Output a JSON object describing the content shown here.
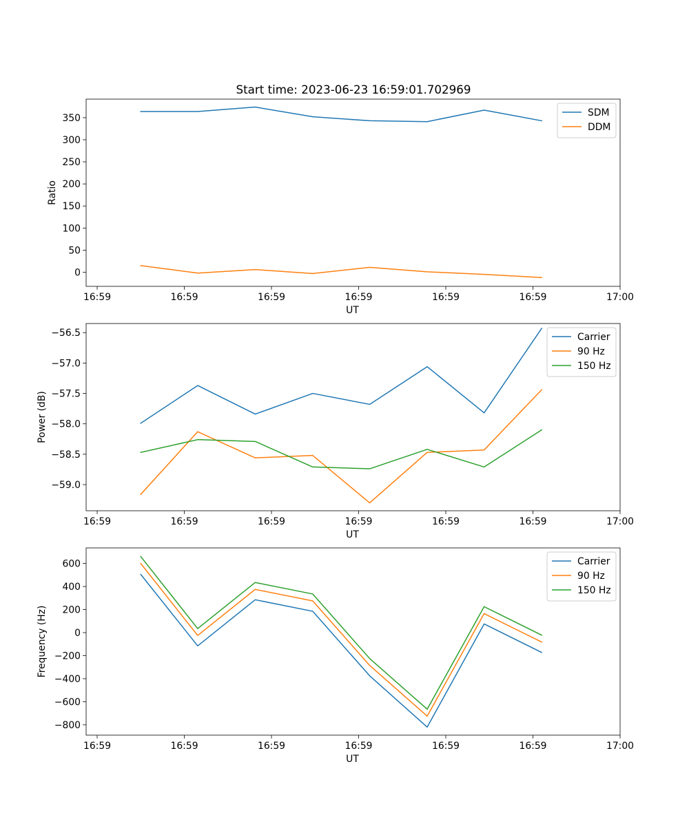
{
  "title": "Start time: 2023-06-23 16:59:01.702969",
  "colors": {
    "series1": "#1f77b4",
    "series2": "#ff7f0e",
    "series3": "#2ca02c",
    "axis": "#000000",
    "legend_border": "#cccccc"
  },
  "chart_data": [
    {
      "type": "line",
      "title": "Start time: 2023-06-23 16:59:01.702969",
      "xlabel": "UT",
      "ylabel": "Ratio",
      "x_tick_labels": [
        "16:59",
        "16:59",
        "16:59",
        "16:59",
        "16:59",
        "16:59",
        "17:00"
      ],
      "x_range_index": [
        -0.19,
        9.0
      ],
      "x_ticks_index": [
        0,
        1.5,
        3,
        4.5,
        6,
        7.5,
        9
      ],
      "ylim": [
        -32,
        392
      ],
      "y_ticks": [
        0,
        50,
        100,
        150,
        200,
        250,
        300,
        350
      ],
      "y_tick_labels": [
        "0",
        "50",
        "100",
        "150",
        "200",
        "250",
        "300",
        "350"
      ],
      "legend_position": "upper right",
      "grid": false,
      "x": [
        0.75,
        1.73,
        2.72,
        3.71,
        4.69,
        5.68,
        6.66,
        7.65
      ],
      "series": [
        {
          "name": "SDM",
          "color": "#1f77b4",
          "values": [
            364,
            364,
            374,
            352,
            343,
            341,
            367,
            343
          ]
        },
        {
          "name": "DDM",
          "color": "#ff7f0e",
          "values": [
            15,
            -2,
            6,
            -3,
            11,
            1,
            -5,
            -12
          ]
        }
      ]
    },
    {
      "type": "line",
      "xlabel": "UT",
      "ylabel": "Power (dB)",
      "x_tick_labels": [
        "16:59",
        "16:59",
        "16:59",
        "16:59",
        "16:59",
        "16:59",
        "17:00"
      ],
      "x_range_index": [
        -0.19,
        9.0
      ],
      "x_ticks_index": [
        0,
        1.5,
        3,
        4.5,
        6,
        7.5,
        9
      ],
      "ylim": [
        -59.43,
        -56.35
      ],
      "y_ticks": [
        -59.0,
        -58.5,
        -58.0,
        -57.5,
        -57.0,
        -56.5
      ],
      "y_tick_labels": [
        "−59.0",
        "−58.5",
        "−58.0",
        "−57.5",
        "−57.0",
        "−56.5"
      ],
      "legend_position": "upper right",
      "grid": false,
      "x": [
        0.75,
        1.73,
        2.72,
        3.71,
        4.69,
        5.68,
        6.66,
        7.65
      ],
      "series": [
        {
          "name": "Carrier",
          "color": "#1f77b4",
          "values": [
            -57.99,
            -57.37,
            -57.84,
            -57.5,
            -57.68,
            -57.06,
            -57.82,
            -56.43
          ]
        },
        {
          "name": "90 Hz",
          "color": "#ff7f0e",
          "values": [
            -59.16,
            -58.13,
            -58.56,
            -58.52,
            -59.3,
            -58.47,
            -58.43,
            -57.44
          ]
        },
        {
          "name": "150 Hz",
          "color": "#2ca02c",
          "values": [
            -58.47,
            -58.26,
            -58.29,
            -58.71,
            -58.74,
            -58.42,
            -58.71,
            -58.1
          ]
        }
      ]
    },
    {
      "type": "line",
      "xlabel": "UT",
      "ylabel": "Frequency (Hz)",
      "x_tick_labels": [
        "16:59",
        "16:59",
        "16:59",
        "16:59",
        "16:59",
        "16:59",
        "17:00"
      ],
      "x_range_index": [
        -0.19,
        9.0
      ],
      "x_ticks_index": [
        0,
        1.5,
        3,
        4.5,
        6,
        7.5,
        9
      ],
      "ylim": [
        -890,
        735
      ],
      "y_ticks": [
        -800,
        -600,
        -400,
        -200,
        0,
        200,
        400,
        600
      ],
      "y_tick_labels": [
        "−800",
        "−600",
        "−400",
        "−200",
        "0",
        "200",
        "400",
        "600"
      ],
      "legend_position": "upper right",
      "grid": false,
      "x": [
        0.75,
        1.73,
        2.72,
        3.71,
        4.69,
        5.68,
        6.66,
        7.65
      ],
      "series": [
        {
          "name": "Carrier",
          "color": "#1f77b4",
          "values": [
            505,
            -115,
            285,
            185,
            -375,
            -820,
            75,
            -172
          ]
        },
        {
          "name": "90 Hz",
          "color": "#ff7f0e",
          "values": [
            600,
            -25,
            375,
            275,
            -285,
            -725,
            165,
            -82
          ]
        },
        {
          "name": "150 Hz",
          "color": "#2ca02c",
          "values": [
            660,
            35,
            435,
            335,
            -225,
            -665,
            225,
            -22
          ]
        }
      ]
    }
  ]
}
